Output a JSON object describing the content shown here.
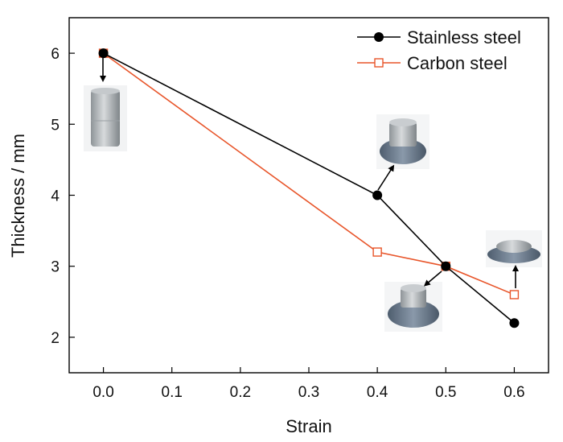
{
  "chart_data": {
    "type": "line",
    "title": "",
    "xlabel": "Strain",
    "ylabel": "Thickness / mm",
    "xlim": [
      -0.05,
      0.65
    ],
    "ylim": [
      1.5,
      6.5
    ],
    "xticks": [
      "0.0",
      "0.1",
      "0.2",
      "0.3",
      "0.4",
      "0.5",
      "0.6"
    ],
    "xtick_values": [
      0.0,
      0.1,
      0.2,
      0.3,
      0.4,
      0.5,
      0.6
    ],
    "yticks": [
      "2",
      "3",
      "4",
      "5",
      "6"
    ],
    "ytick_values": [
      2,
      3,
      4,
      5,
      6
    ],
    "grid": false,
    "legend_position": "top-right",
    "series": [
      {
        "name": "Stainless steel",
        "color": "#000000",
        "marker": "filled-circle",
        "x": [
          0.0,
          0.4,
          0.5,
          0.6
        ],
        "y": [
          6.0,
          4.0,
          3.0,
          2.2
        ]
      },
      {
        "name": "Carbon steel",
        "color": "#e8552a",
        "marker": "open-square",
        "x": [
          0.0,
          0.4,
          0.5,
          0.6
        ],
        "y": [
          6.0,
          3.2,
          3.0,
          2.6
        ]
      }
    ],
    "sample_photos": [
      {
        "name": "cylinder-sample-photo",
        "points_to": {
          "x": 0.0,
          "y": 6.0
        },
        "shape": "tall-cylinder"
      },
      {
        "name": "sample-photo-strain-0.4",
        "points_to": {
          "x": 0.4,
          "y": 4.0
        },
        "shape": "bulged-disc"
      },
      {
        "name": "sample-photo-strain-0.5",
        "points_to": {
          "x": 0.5,
          "y": 3.0
        },
        "shape": "bulged-disc"
      },
      {
        "name": "sample-photo-strain-0.6",
        "points_to": {
          "x": 0.6,
          "y": 2.6
        },
        "shape": "flat-disc"
      }
    ]
  }
}
